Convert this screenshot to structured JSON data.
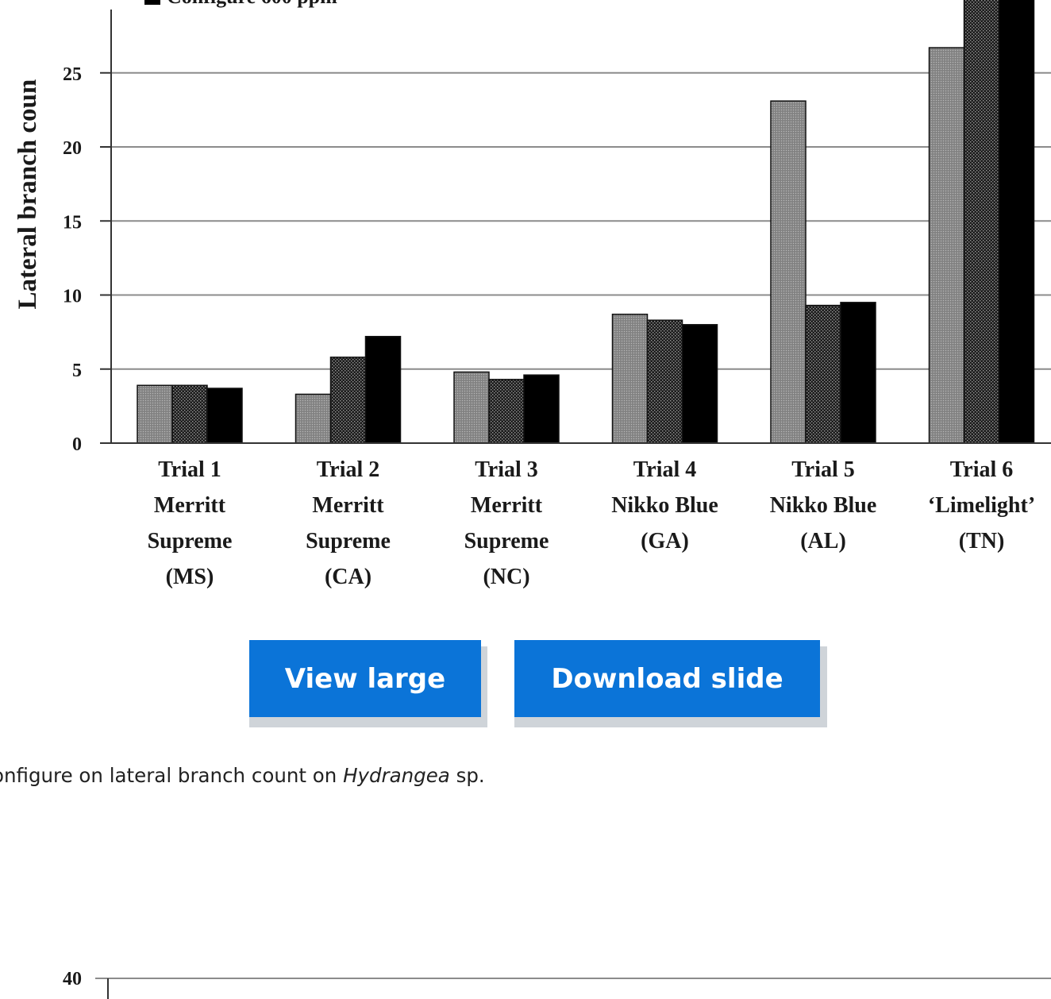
{
  "chart_data": [
    {
      "type": "bar",
      "ylabel": "Lateral branch coun",
      "ylim": [
        0,
        30
      ],
      "yticks": [
        0,
        5,
        10,
        15,
        20,
        25,
        30
      ],
      "grid": true,
      "legend_visible_text": "Configure 600 ppm",
      "categories": [
        [
          "Trial 1",
          "Merritt",
          "Supreme",
          "(MS)"
        ],
        [
          "Trial 2",
          "Merritt",
          "Supreme",
          "(CA)"
        ],
        [
          "Trial 3",
          "Merritt",
          "Supreme",
          "(NC)"
        ],
        [
          "Trial 4",
          "Nikko Blue",
          "(GA)"
        ],
        [
          "Trial 5",
          "Nikko Blue",
          "(AL)"
        ],
        [
          "Trial 6",
          "‘Limelight’",
          "(TN)"
        ]
      ],
      "series": [
        {
          "color": "#808080",
          "values": [
            3.9,
            3.3,
            4.8,
            8.7,
            23.1,
            26.7
          ]
        },
        {
          "color": "#2b2b2b",
          "values": [
            3.9,
            5.8,
            4.3,
            8.3,
            9.3,
            31
          ]
        },
        {
          "color": "#000000",
          "values": [
            3.7,
            7.2,
            4.6,
            8.0,
            9.5,
            31
          ]
        }
      ]
    },
    {
      "type": "bar",
      "yticks_visible": [
        40
      ]
    }
  ],
  "buttons": {
    "view_large": "View large",
    "download_slide": "Download slide"
  },
  "caption": {
    "before": "onfigure on lateral branch count on ",
    "italic": "Hydrangea",
    "after": " sp."
  },
  "colors": {
    "button": "#0b74d8",
    "grid": "#8c8c8c"
  }
}
